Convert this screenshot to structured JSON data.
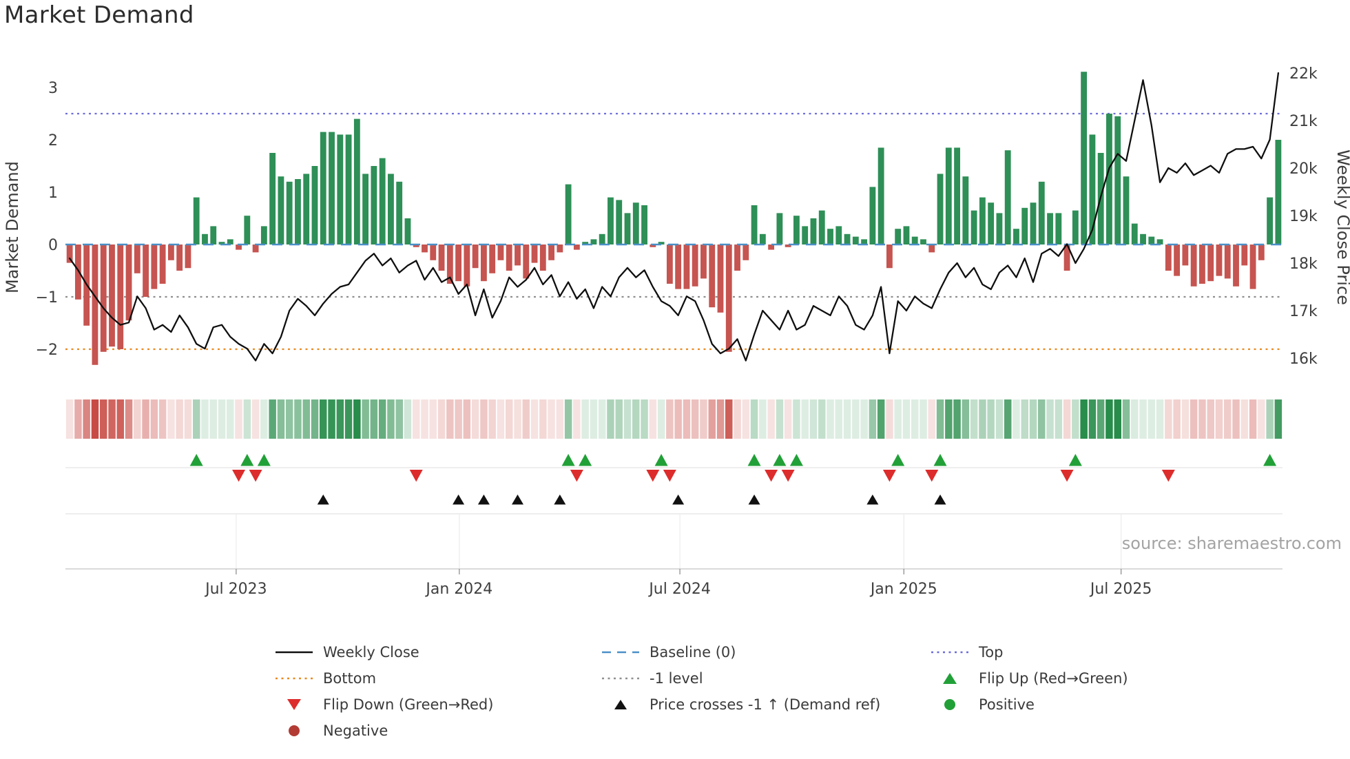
{
  "title": "Market Demand",
  "source": "source: sharemaestro.com",
  "colors": {
    "positive_bar": "#2e8f57",
    "negative_bar": "#c65450",
    "price_line": "#0f0f0f",
    "baseline": "#4a8fc7",
    "top": "#6b6bdb",
    "bottom": "#e98a21",
    "minus_one": "#8f8f8f",
    "flip_up": "#22a038",
    "flip_down": "#dd2c2c",
    "price_cross": "#111111",
    "positive_dot": "#22a038",
    "negative_dot": "#b23b34",
    "heat_green": "#288c4b",
    "heat_red": "#c84a44"
  },
  "chart_data": {
    "type": "bar+line",
    "n_weeks": 144,
    "x_ticks": [
      {
        "label": "Jul 2023",
        "week": 19.7
      },
      {
        "label": "Jan 2024",
        "week": 46.1
      },
      {
        "label": "Jul 2024",
        "week": 72.2
      },
      {
        "label": "Jan 2025",
        "week": 98.7
      },
      {
        "label": "Jul 2025",
        "week": 124.4
      }
    ],
    "demand_axis": {
      "label": "Market Demand",
      "ylim": [
        -2.6,
        3.5
      ],
      "ticks": [
        {
          "label": "3",
          "value": 3
        },
        {
          "label": "2",
          "value": 2
        },
        {
          "label": "1",
          "value": 1
        },
        {
          "label": "0",
          "value": 0
        },
        {
          "label": "−1",
          "value": -1
        },
        {
          "label": "−2",
          "value": -2
        }
      ]
    },
    "price_axis": {
      "label": "Weekly Close Price",
      "ylim_k": [
        15.8,
        22.3
      ],
      "ticks": [
        {
          "label": "22k",
          "value": 22
        },
        {
          "label": "21k",
          "value": 21
        },
        {
          "label": "20k",
          "value": 20
        },
        {
          "label": "19k",
          "value": 19
        },
        {
          "label": "18k",
          "value": 18
        },
        {
          "label": "17k",
          "value": 17
        },
        {
          "label": "16k",
          "value": 16
        }
      ]
    },
    "series": [
      {
        "name": "Market Demand",
        "type": "bar",
        "values": [
          -0.35,
          -1.05,
          -1.55,
          -2.3,
          -2.05,
          -1.95,
          -2.0,
          -1.45,
          -0.55,
          -1.0,
          -0.85,
          -0.75,
          -0.3,
          -0.5,
          -0.45,
          0.9,
          0.2,
          0.35,
          0.05,
          0.1,
          -0.1,
          0.55,
          -0.15,
          0.35,
          1.75,
          1.3,
          1.2,
          1.25,
          1.35,
          1.5,
          2.15,
          2.15,
          2.1,
          2.1,
          2.4,
          1.35,
          1.5,
          1.65,
          1.35,
          1.2,
          0.5,
          -0.05,
          -0.15,
          -0.3,
          -0.5,
          -0.75,
          -0.7,
          -0.8,
          -0.45,
          -0.7,
          -0.55,
          -0.3,
          -0.5,
          -0.4,
          -0.65,
          -0.35,
          -0.5,
          -0.3,
          -0.15,
          1.15,
          -0.1,
          0.05,
          0.1,
          0.2,
          0.9,
          0.85,
          0.6,
          0.8,
          0.75,
          -0.05,
          0.05,
          -0.75,
          -0.85,
          -0.85,
          -0.8,
          -0.65,
          -1.2,
          -1.3,
          -2.05,
          -0.5,
          -0.3,
          0.75,
          0.2,
          -0.1,
          0.6,
          -0.05,
          0.55,
          0.35,
          0.5,
          0.65,
          0.3,
          0.35,
          0.2,
          0.15,
          0.1,
          1.1,
          1.85,
          -0.45,
          0.3,
          0.35,
          0.15,
          0.1,
          -0.15,
          1.35,
          1.85,
          1.85,
          1.3,
          0.65,
          0.9,
          0.8,
          0.6,
          1.8,
          0.3,
          0.7,
          0.8,
          1.2,
          0.6,
          0.6,
          -0.5,
          0.65,
          3.3,
          2.1,
          1.75,
          2.5,
          2.45,
          1.3,
          0.4,
          0.2,
          0.15,
          0.1,
          -0.5,
          -0.6,
          -0.4,
          -0.8,
          -0.75,
          -0.7,
          -0.6,
          -0.65,
          -0.8,
          -0.4,
          -0.85,
          -0.3,
          0.9,
          2.0
        ]
      },
      {
        "name": "Weekly Close",
        "type": "line",
        "unit": "k",
        "values": [
          18.1,
          17.85,
          17.55,
          17.3,
          17.05,
          16.85,
          16.7,
          16.75,
          17.3,
          17.05,
          16.6,
          16.7,
          16.55,
          16.9,
          16.65,
          16.3,
          16.2,
          16.65,
          16.7,
          16.45,
          16.3,
          16.2,
          15.95,
          16.3,
          16.1,
          16.45,
          17.0,
          17.25,
          17.1,
          16.9,
          17.15,
          17.35,
          17.5,
          17.55,
          17.8,
          18.05,
          18.2,
          17.95,
          18.1,
          17.8,
          17.95,
          18.05,
          17.65,
          17.9,
          17.6,
          17.7,
          17.35,
          17.55,
          16.9,
          17.45,
          16.85,
          17.2,
          17.7,
          17.5,
          17.65,
          17.9,
          17.55,
          17.75,
          17.3,
          17.6,
          17.25,
          17.45,
          17.05,
          17.5,
          17.3,
          17.7,
          17.9,
          17.7,
          17.85,
          17.5,
          17.2,
          17.1,
          16.9,
          17.3,
          17.2,
          16.8,
          16.3,
          16.1,
          16.2,
          16.4,
          15.95,
          16.5,
          17.0,
          16.8,
          16.6,
          17.0,
          16.6,
          16.7,
          17.1,
          17.0,
          16.9,
          17.3,
          17.1,
          16.7,
          16.6,
          16.9,
          17.5,
          16.1,
          17.2,
          17.0,
          17.3,
          17.15,
          17.05,
          17.45,
          17.8,
          18.0,
          17.7,
          17.9,
          17.55,
          17.45,
          17.8,
          17.95,
          17.7,
          18.1,
          17.6,
          18.2,
          18.3,
          18.15,
          18.4,
          18.0,
          18.3,
          18.7,
          19.4,
          20.0,
          20.3,
          20.15,
          21.0,
          21.85,
          20.9,
          19.7,
          20.0,
          19.9,
          20.1,
          19.85,
          19.95,
          20.05,
          19.9,
          20.3,
          20.4,
          20.4,
          20.45,
          20.2,
          20.6,
          22.0
        ]
      }
    ],
    "reference_lines": [
      {
        "name": "Baseline (0)",
        "value": 0,
        "style": "dashed",
        "color": "#4a8fc7"
      },
      {
        "name": "Top",
        "value": 2.5,
        "style": "dotted",
        "color": "#6b6bdb"
      },
      {
        "name": "Bottom",
        "value": -2,
        "style": "dotted",
        "color": "#e98a21"
      },
      {
        "name": "-1 level",
        "value": -1,
        "style": "dotted",
        "color": "#8f8f8f"
      }
    ],
    "heatmap": {
      "from_series": "Market Demand",
      "palette": "red-white-green"
    },
    "markers": {
      "flip_up_weeks": [
        15,
        21,
        23,
        59,
        61,
        70,
        81,
        84,
        86,
        98,
        103,
        119,
        142
      ],
      "flip_down_weeks": [
        20,
        22,
        41,
        60,
        69,
        71,
        83,
        85,
        97,
        102,
        118,
        130
      ],
      "price_cross_weeks": [
        30,
        46,
        49,
        53,
        58,
        72,
        81,
        95,
        103
      ]
    }
  },
  "legend": {
    "items": [
      {
        "icon": "weekly-close-line",
        "label": "Weekly Close"
      },
      {
        "icon": "baseline-dash",
        "label": "Baseline (0)"
      },
      {
        "icon": "top-dotted",
        "label": "Top"
      },
      {
        "icon": "bottom-dotted",
        "label": "Bottom"
      },
      {
        "icon": "minus-one-dotted",
        "label": "-1 level"
      },
      {
        "icon": "flip-up-triangle",
        "label": "Flip Up (Red→Green)"
      },
      {
        "icon": "flip-down-triangle",
        "label": "Flip Down (Green→Red)"
      },
      {
        "icon": "price-cross-triangle",
        "label": "Price crosses -1 ↑ (Demand ref)"
      },
      {
        "icon": "positive-circle",
        "label": "Positive"
      },
      {
        "icon": "negative-circle",
        "label": "Negative"
      }
    ]
  }
}
